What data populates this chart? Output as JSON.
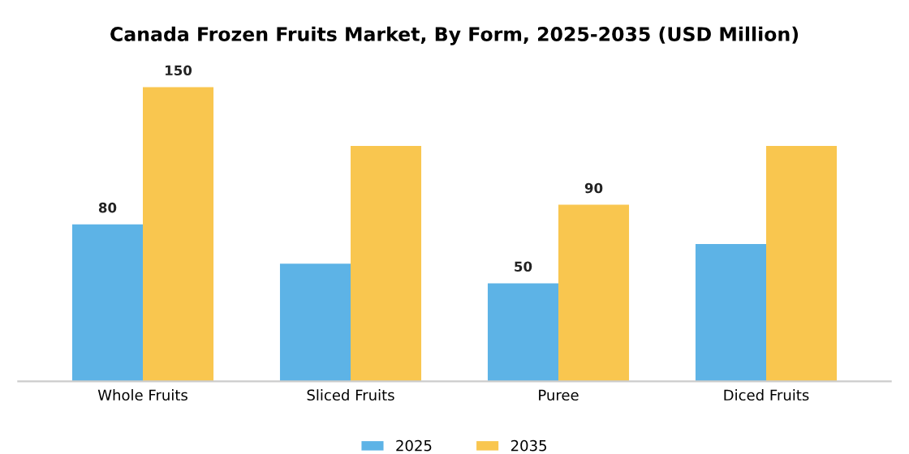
{
  "chart_data": {
    "type": "bar",
    "title": "Canada Frozen Fruits Market, By Form, 2025-2035 (USD Million)",
    "categories": [
      "Whole Fruits",
      "Sliced Fruits",
      "Puree",
      "Diced Fruits"
    ],
    "series": [
      {
        "name": "2025",
        "color": "#5db3e6",
        "values": [
          80,
          60,
          50,
          70
        ],
        "value_labels": [
          "80",
          null,
          "50",
          null
        ]
      },
      {
        "name": "2035",
        "color": "#f9c64f",
        "values": [
          150,
          120,
          90,
          120
        ],
        "value_labels": [
          "150",
          null,
          "90",
          null
        ]
      }
    ],
    "legend": "bottom",
    "grid": false,
    "tick_labels": "x"
  }
}
